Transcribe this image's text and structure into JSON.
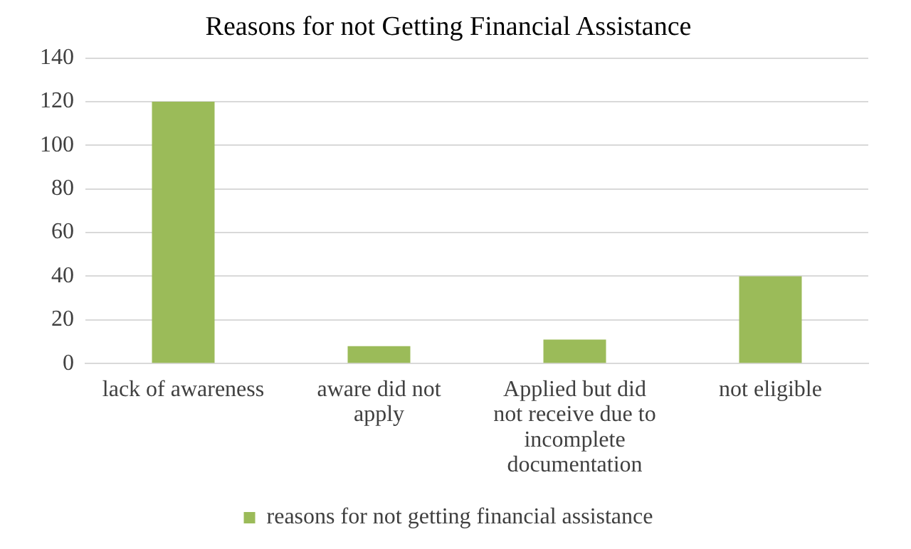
{
  "chart_data": {
    "type": "bar",
    "title": "Reasons for not Getting Financial Assistance",
    "categories": [
      "lack of awareness",
      "aware did not apply",
      "Applied but did not receive due to incomplete documentation",
      "not eligible"
    ],
    "series": [
      {
        "name": "reasons for not getting financial assistance",
        "color": "#9bbb59",
        "values": [
          120,
          8,
          11,
          40
        ]
      }
    ],
    "ylim": [
      0,
      140
    ],
    "yticks": [
      0,
      20,
      40,
      60,
      80,
      100,
      120,
      140
    ],
    "grid": "y",
    "legend": "bottom"
  }
}
